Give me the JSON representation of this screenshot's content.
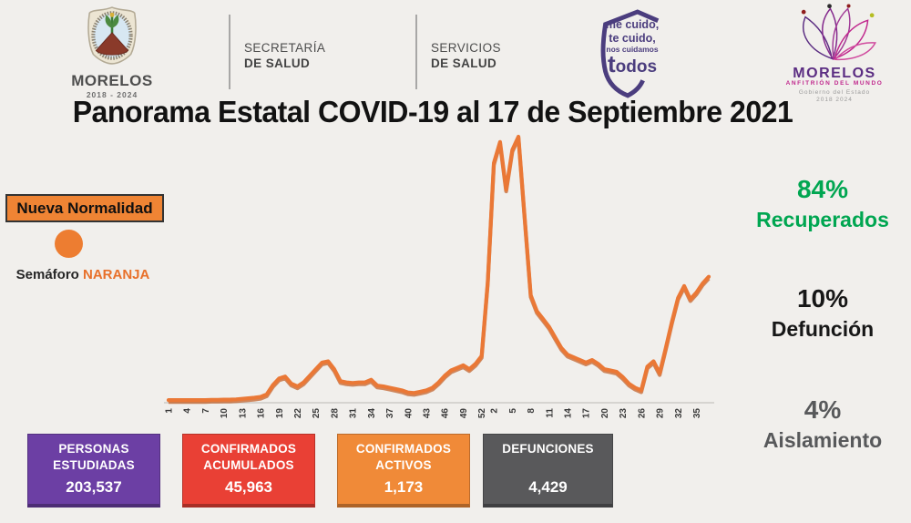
{
  "header": {
    "coat_of_arms": {
      "title": "MORELOS",
      "years": "2018 - 2024"
    },
    "secretaria": {
      "line1": "SECRETARÍA",
      "line2": "DE SALUD"
    },
    "servicios": {
      "line1": "SERVICIOS",
      "line2": "DE SALUD"
    },
    "badge": {
      "line1": "me cuido,",
      "line2": "te cuido,",
      "line3": "nos cuidamos",
      "line4": "todos"
    },
    "morelos_logo": {
      "name": "MORELOS",
      "tagline": "ANFITRIÓN DEL MUNDO",
      "gov": "Gobierno del Estado",
      "years": "2018 2024"
    }
  },
  "title": "Panorama Estatal COVID-19 al 17 de Septiembre 2021",
  "semaforo": {
    "box_label": "Nueva Normalidad",
    "caption_prefix": "Semáforo",
    "caption_value": "NARANJA",
    "color": "#ED7D31"
  },
  "right_stats": [
    {
      "pct": "84%",
      "label": "Recuperados",
      "color": "#00A651"
    },
    {
      "pct": "10%",
      "label": "Defunción",
      "color": "#171717"
    },
    {
      "pct": "4%",
      "label": "Aislamiento",
      "color": "#58595B"
    }
  ],
  "chart_data": {
    "type": "line",
    "description": "Casos semanales de COVID-19, Morelos, por semana epidemiológica 2020→2021 (eje Y sin escala visible; valores relativos, pico máximo = 100)",
    "line_color": "#EA7836",
    "line_shadow_color": "#C05A20",
    "axis_color": "#c6c3be",
    "tick_color": "#3a3a3a",
    "grid": "none",
    "legend": "none",
    "ylim": [
      0,
      100
    ],
    "x_tick_labels": [
      "1",
      "4",
      "7",
      "10",
      "13",
      "16",
      "19",
      "22",
      "25",
      "28",
      "31",
      "34",
      "37",
      "40",
      "43",
      "46",
      "49",
      "52",
      "2",
      "5",
      "8",
      "11",
      "14",
      "17",
      "20",
      "23",
      "26",
      "29",
      "32",
      "35"
    ],
    "x_tick_positions": [
      0,
      3,
      6,
      9,
      12,
      15,
      18,
      21,
      24,
      27,
      30,
      33,
      36,
      39,
      42,
      45,
      48,
      51,
      53,
      56,
      59,
      62,
      65,
      68,
      71,
      74,
      77,
      80,
      83,
      86
    ],
    "weeks_2020_count": 52,
    "weeks_2021_count": 37,
    "values": [
      0.3,
      0.3,
      0.3,
      0.3,
      0.3,
      0.3,
      0.3,
      0.4,
      0.4,
      0.5,
      0.5,
      0.6,
      0.8,
      1.0,
      1.2,
      1.5,
      2.5,
      6,
      8.5,
      9.2,
      6.5,
      5.5,
      7,
      9.5,
      12,
      14.5,
      15,
      12,
      7.5,
      7,
      6.8,
      7,
      7,
      8,
      5.8,
      5.5,
      5,
      4.5,
      4,
      3.2,
      3,
      3.5,
      4,
      5,
      7,
      9.5,
      11.5,
      12.5,
      13.5,
      12,
      14,
      17,
      45,
      90,
      98,
      80,
      95,
      100,
      70,
      40,
      34,
      31,
      28,
      24,
      20,
      17.5,
      16.5,
      15.5,
      14.5,
      15.5,
      14,
      12,
      11.5,
      11,
      9,
      6.5,
      5,
      4,
      13,
      15,
      10.5,
      20,
      30,
      39,
      43.5,
      38.5,
      41,
      44.5,
      47
    ]
  },
  "stat_boxes": [
    {
      "line1": "PERSONAS",
      "line2": "ESTUDIADAS",
      "value": "203,537",
      "color": "#6C3FA4"
    },
    {
      "line1": "CONFIRMADOS",
      "line2": "ACUMULADOS",
      "value": "45,963",
      "color": "#E94035"
    },
    {
      "line1": "CONFIRMADOS",
      "line2": "ACTIVOS",
      "value": "1,173",
      "color": "#F08A38"
    },
    {
      "line1": "DEFUNCIONES",
      "line2": "",
      "value": "4,429",
      "color": "#59595B"
    }
  ]
}
